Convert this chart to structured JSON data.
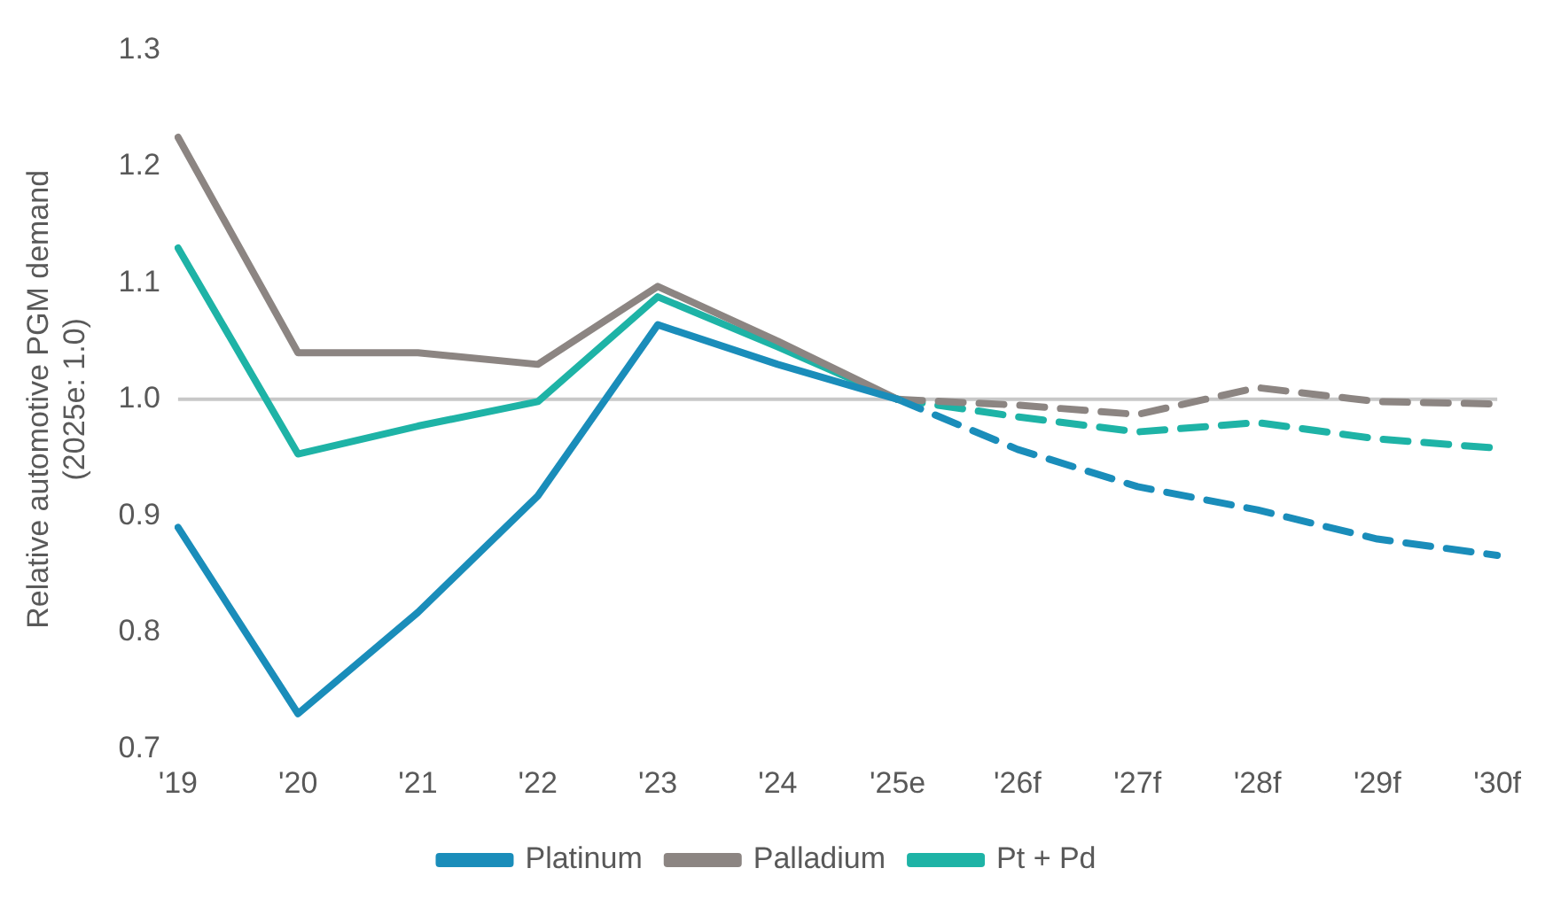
{
  "chart_data": {
    "type": "line",
    "ylabel": "Relative automotive PGM demand\n(2025e: 1.0)",
    "categories": [
      "'19",
      "'20",
      "'21",
      "'22",
      "'23",
      "'24",
      "'25e",
      "'26f",
      "'27f",
      "'28f",
      "'29f",
      "'30f"
    ],
    "ylim": [
      0.7,
      1.3
    ],
    "yticks": [
      {
        "value": 0.7,
        "label": "0.7"
      },
      {
        "value": 0.8,
        "label": "0.8"
      },
      {
        "value": 0.9,
        "label": "0.9"
      },
      {
        "value": 1.0,
        "label": "1.0"
      },
      {
        "value": 1.1,
        "label": "1.1"
      },
      {
        "value": 1.2,
        "label": "1.2"
      },
      {
        "value": 1.3,
        "label": "1.3"
      }
    ],
    "series": [
      {
        "name": "Platinum",
        "color": "#1a8dba",
        "line_style": "solid",
        "values": [
          0.89,
          0.73,
          0.817,
          0.917,
          1.064,
          1.03,
          1.0,
          null,
          null,
          null,
          null,
          null
        ]
      },
      {
        "name": "Palladium",
        "color": "#8c8582",
        "line_style": "solid",
        "values": [
          1.225,
          1.04,
          1.04,
          1.03,
          1.097,
          1.05,
          1.0,
          null,
          null,
          null,
          null,
          null
        ]
      },
      {
        "name": "Pt + Pd",
        "color": "#1eb3a6",
        "line_style": "solid",
        "values": [
          1.13,
          0.953,
          0.977,
          0.998,
          1.088,
          1.045,
          1.0,
          null,
          null,
          null,
          null,
          null
        ]
      },
      {
        "color": "#1a8dba",
        "line_style": "dashed",
        "values": [
          null,
          null,
          null,
          null,
          null,
          null,
          1.0,
          0.957,
          0.925,
          0.905,
          0.88,
          0.866
        ]
      },
      {
        "color": "#8c8582",
        "line_style": "dashed",
        "values": [
          null,
          null,
          null,
          null,
          null,
          null,
          1.0,
          0.995,
          0.987,
          1.01,
          0.998,
          0.996
        ]
      },
      {
        "color": "#1eb3a6",
        "line_style": "dashed",
        "values": [
          null,
          null,
          null,
          null,
          null,
          null,
          1.0,
          0.985,
          0.972,
          0.98,
          0.966,
          0.958
        ]
      }
    ],
    "ref_lines": [
      {
        "axis": "y",
        "value": 1.0,
        "color": "#c8c8c8"
      }
    ],
    "grid": false,
    "legend": "bottom",
    "marker": "none"
  }
}
